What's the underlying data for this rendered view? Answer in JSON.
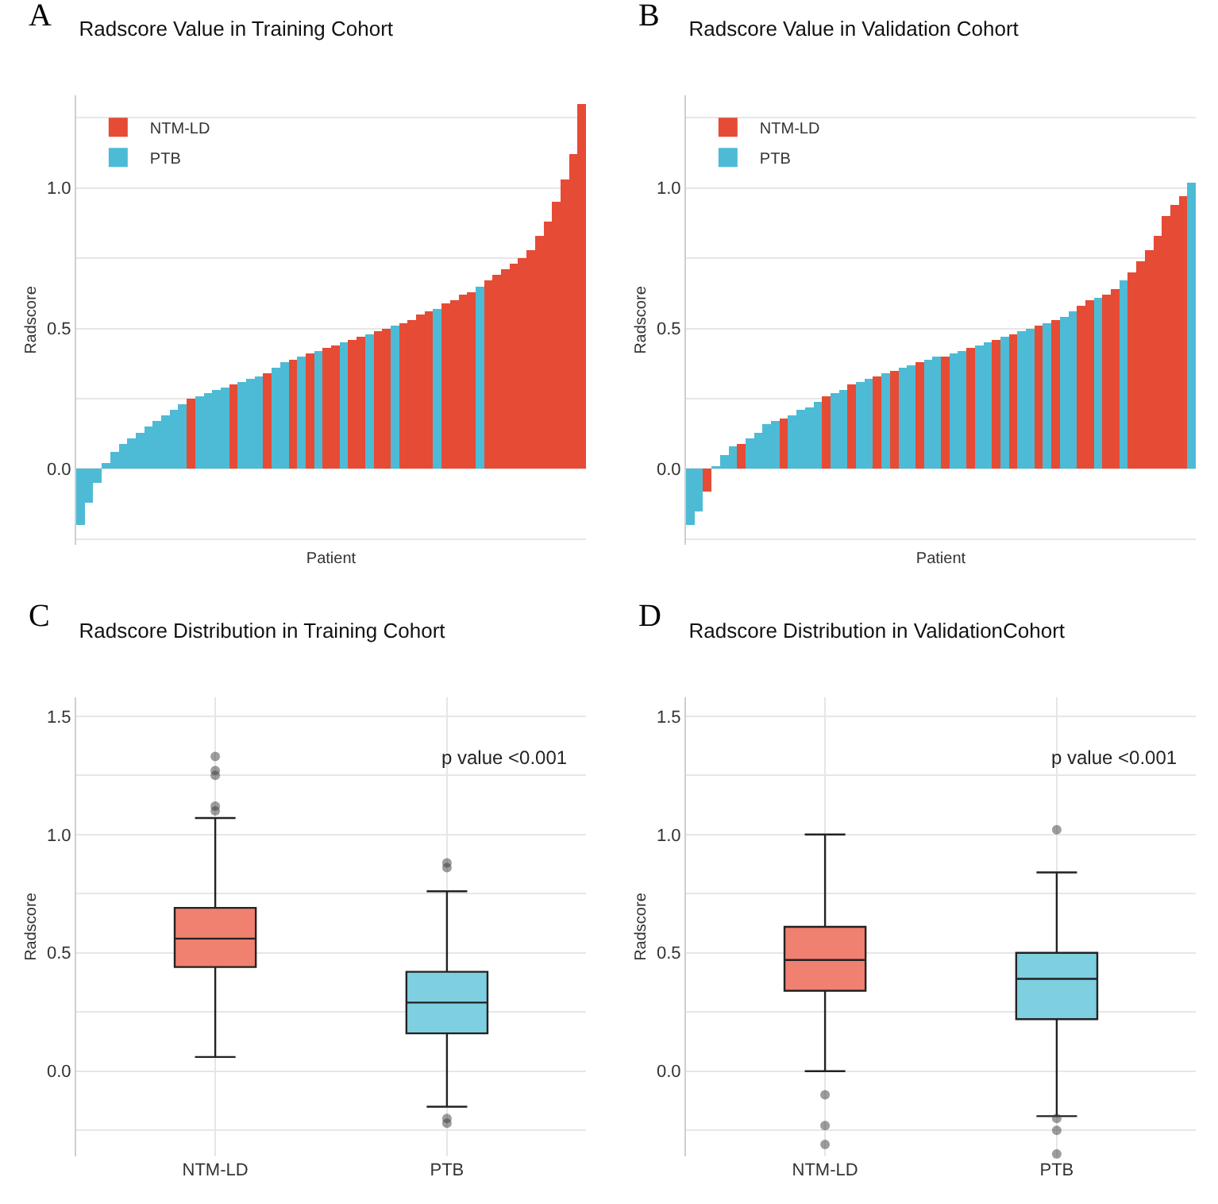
{
  "chart_data": [
    {
      "type": "bar",
      "title": "Radscore Value in Training Cohort",
      "xlabel": "Patient",
      "ylabel": "Radscore",
      "annotations": [
        "A"
      ],
      "categories": [
        null,
        null,
        null,
        null,
        null,
        null,
        null,
        null,
        null,
        null,
        null,
        null,
        null,
        null,
        null,
        null,
        null,
        null,
        null,
        null,
        null,
        null,
        null,
        null,
        null,
        null,
        null,
        null,
        null,
        null,
        null,
        null,
        null,
        null,
        null,
        null,
        null,
        null,
        null,
        null,
        null,
        null,
        null,
        null,
        null,
        null,
        null,
        null,
        null,
        null,
        null,
        null,
        null,
        null,
        null,
        null,
        null,
        null,
        null,
        null
      ],
      "series": [
        {
          "name": "NTM-LD",
          "color": "#e64b35",
          "values": [
            null,
            null,
            null,
            null,
            null,
            null,
            null,
            null,
            null,
            null,
            null,
            null,
            null,
            0.25,
            null,
            null,
            null,
            null,
            0.3,
            null,
            null,
            null,
            0.34,
            null,
            null,
            0.39,
            null,
            0.41,
            null,
            0.43,
            0.44,
            null,
            0.46,
            0.47,
            null,
            0.49,
            0.5,
            null,
            0.52,
            0.53,
            0.55,
            0.56,
            null,
            0.59,
            0.6,
            0.62,
            0.63,
            null,
            0.67,
            0.69,
            0.71,
            0.73,
            0.75,
            0.78,
            0.83,
            0.88,
            0.95,
            1.03,
            1.12,
            1.3
          ]
        },
        {
          "name": "PTB",
          "color": "#4dbbd5",
          "values": [
            -0.2,
            -0.12,
            -0.05,
            0.02,
            0.06,
            0.09,
            0.11,
            0.13,
            0.15,
            0.17,
            0.19,
            0.21,
            0.23,
            null,
            0.26,
            0.27,
            0.28,
            0.29,
            null,
            0.31,
            0.32,
            0.33,
            null,
            0.36,
            0.38,
            null,
            0.4,
            null,
            0.42,
            null,
            null,
            0.45,
            null,
            null,
            0.48,
            null,
            null,
            0.51,
            null,
            null,
            null,
            null,
            0.57,
            null,
            null,
            null,
            null,
            0.65,
            null,
            null,
            null,
            null,
            null,
            null,
            null,
            null,
            null,
            null,
            null,
            null
          ]
        }
      ],
      "ylim": [
        -0.27,
        1.33
      ],
      "yticks": [
        {
          "value": -0.25,
          "label": null
        },
        {
          "value": 0,
          "label": "0.0"
        },
        {
          "value": 0.25,
          "label": null
        },
        {
          "value": 0.5,
          "label": "0.5"
        },
        {
          "value": 0.75,
          "label": null
        },
        {
          "value": 1,
          "label": "1.0"
        },
        {
          "value": 1.25,
          "label": null
        }
      ],
      "grid": "y",
      "legend": "top left",
      "tick_labels": "y"
    },
    {
      "type": "bar",
      "title": "Radscore Value in Validation Cohort",
      "xlabel": "Patient",
      "ylabel": "Radscore",
      "annotations": [
        "B"
      ],
      "categories": [
        null,
        null,
        null,
        null,
        null,
        null,
        null,
        null,
        null,
        null,
        null,
        null,
        null,
        null,
        null,
        null,
        null,
        null,
        null,
        null,
        null,
        null,
        null,
        null,
        null,
        null,
        null,
        null,
        null,
        null,
        null,
        null,
        null,
        null,
        null,
        null,
        null,
        null,
        null,
        null,
        null,
        null,
        null,
        null,
        null,
        null,
        null,
        null,
        null,
        null,
        null,
        null,
        null,
        null,
        null,
        null,
        null,
        null,
        null,
        null
      ],
      "series": [
        {
          "name": "NTM-LD",
          "color": "#e64b35",
          "values": [
            null,
            null,
            -0.08,
            null,
            null,
            null,
            0.09,
            null,
            null,
            null,
            null,
            0.18,
            null,
            null,
            null,
            null,
            0.26,
            null,
            null,
            0.3,
            null,
            null,
            0.33,
            null,
            0.35,
            null,
            null,
            0.38,
            null,
            null,
            0.4,
            null,
            null,
            0.43,
            null,
            null,
            0.46,
            null,
            0.48,
            null,
            null,
            0.51,
            null,
            0.53,
            null,
            null,
            0.58,
            0.6,
            null,
            0.62,
            0.64,
            null,
            0.7,
            0.74,
            0.78,
            0.83,
            0.9,
            0.94,
            0.97,
            null
          ]
        },
        {
          "name": "PTB",
          "color": "#4dbbd5",
          "values": [
            -0.2,
            -0.15,
            null,
            0.01,
            0.05,
            0.08,
            null,
            0.11,
            0.13,
            0.16,
            0.17,
            null,
            0.19,
            0.21,
            0.22,
            0.24,
            null,
            0.27,
            0.28,
            null,
            0.31,
            0.32,
            null,
            0.34,
            null,
            0.36,
            0.37,
            null,
            0.39,
            0.4,
            null,
            0.41,
            0.42,
            null,
            0.44,
            0.45,
            null,
            0.47,
            null,
            0.49,
            0.5,
            null,
            0.52,
            null,
            0.54,
            0.56,
            null,
            null,
            0.61,
            null,
            null,
            0.67,
            null,
            null,
            null,
            null,
            null,
            null,
            null,
            1.02
          ]
        }
      ],
      "ylim": [
        -0.27,
        1.33
      ],
      "yticks": [
        {
          "value": -0.25,
          "label": null
        },
        {
          "value": 0,
          "label": "0.0"
        },
        {
          "value": 0.25,
          "label": null
        },
        {
          "value": 0.5,
          "label": "0.5"
        },
        {
          "value": 0.75,
          "label": null
        },
        {
          "value": 1,
          "label": "1.0"
        },
        {
          "value": 1.25,
          "label": null
        }
      ],
      "grid": "y",
      "legend": "top left",
      "tick_labels": "y"
    },
    {
      "type": "box",
      "title": "Radscore Distribution in Training Cohort",
      "ylabel": "Radscore",
      "annotations": [
        "C",
        "p value <0.001"
      ],
      "categories": [
        "NTM-LD",
        "PTB"
      ],
      "colors": [
        "#f08070",
        "#7ecfe0"
      ],
      "boxes": [
        {
          "low": 0.06,
          "q1": 0.44,
          "median": 0.56,
          "q3": 0.69,
          "high": 1.07,
          "outliers": [
            1.1,
            1.12,
            1.25,
            1.27,
            1.33
          ]
        },
        {
          "low": -0.15,
          "q1": 0.16,
          "median": 0.29,
          "q3": 0.42,
          "high": 0.76,
          "outliers": [
            0.86,
            0.88,
            -0.2,
            -0.22
          ]
        }
      ],
      "ylim": [
        -0.36,
        1.58
      ],
      "yticks": [
        {
          "value": -0.25,
          "label": null
        },
        {
          "value": 0,
          "label": "0.0"
        },
        {
          "value": 0.25,
          "label": null
        },
        {
          "value": 0.5,
          "label": "0.5"
        },
        {
          "value": 0.75,
          "label": null
        },
        {
          "value": 1,
          "label": "1.0"
        },
        {
          "value": 1.25,
          "label": null
        },
        {
          "value": 1.5,
          "label": "1.5"
        }
      ],
      "grid": true,
      "marker": "circle"
    },
    {
      "type": "box",
      "title": "Radscore Distribution in ValidationCohort",
      "ylabel": "Radscore",
      "annotations": [
        "D",
        "p value <0.001"
      ],
      "categories": [
        "NTM-LD",
        "PTB"
      ],
      "colors": [
        "#f08070",
        "#7ecfe0"
      ],
      "boxes": [
        {
          "low": 0.0,
          "q1": 0.34,
          "median": 0.47,
          "q3": 0.61,
          "high": 1.0,
          "outliers": [
            -0.1,
            -0.23,
            -0.31
          ]
        },
        {
          "low": -0.19,
          "q1": 0.22,
          "median": 0.39,
          "q3": 0.5,
          "high": 0.84,
          "outliers": [
            1.02,
            -0.2,
            -0.25,
            -0.35
          ]
        }
      ],
      "ylim": [
        -0.36,
        1.58
      ],
      "yticks": [
        {
          "value": -0.25,
          "label": null
        },
        {
          "value": 0,
          "label": "0.0"
        },
        {
          "value": 0.25,
          "label": null
        },
        {
          "value": 0.5,
          "label": "0.5"
        },
        {
          "value": 0.75,
          "label": null
        },
        {
          "value": 1,
          "label": "1.0"
        },
        {
          "value": 1.25,
          "label": null
        },
        {
          "value": 1.5,
          "label": "1.5"
        }
      ],
      "grid": true,
      "marker": "circle"
    }
  ]
}
